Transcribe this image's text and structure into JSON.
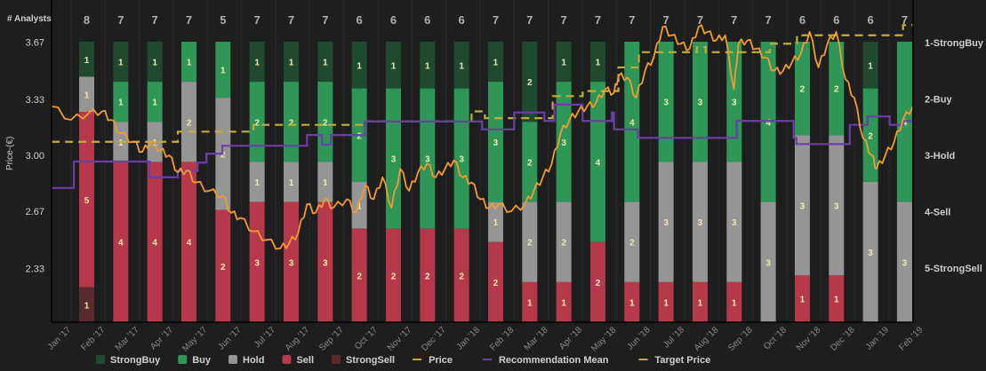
{
  "chart_data": {
    "type": "bar",
    "stacked": true,
    "left_axis_title": "Price-(€)",
    "count_header": "# Analysts",
    "y_left_ticks": [
      {
        "label": "3.67",
        "value": 3.67
      },
      {
        "label": "3.33",
        "value": 3.33
      },
      {
        "label": "3.00",
        "value": 3.0
      },
      {
        "label": "2.67",
        "value": 2.67
      },
      {
        "label": "2.33",
        "value": 2.33
      }
    ],
    "y_left_range": [
      2.0,
      3.92
    ],
    "y_right_ticks": [
      "1-StrongBuy",
      "2-Buy",
      "3-Hold",
      "4-Sell",
      "5-StrongSell"
    ],
    "x_tick_labels": [
      "Jan '17",
      "Feb '17",
      "Mar '17",
      "Apr '17",
      "May '17",
      "Jun '17",
      "Jul '17",
      "Aug '17",
      "Sep '17",
      "Oct '17",
      "Nov '17",
      "Dec '17",
      "Jan '18",
      "Feb '18",
      "Mar '18",
      "Apr '18",
      "May '18",
      "Jun '18",
      "Jul '18",
      "Aug '18",
      "Sep '18",
      "Oct '18",
      "Nov '18",
      "Dec '18",
      "Jan '19",
      "Feb '19"
    ],
    "categories_keys": [
      "StrongBuy",
      "Buy",
      "Hold",
      "Sell",
      "StrongSell"
    ],
    "colors": {
      "StrongBuy": "#1f4a30",
      "Buy": "#2e9656",
      "Hold": "#959595",
      "Sell": "#b5394a",
      "StrongSell": "#5a2a31",
      "Price": "#f39c32",
      "Recommendation Mean": "#6a3fa6",
      "Target Price": "#c2ad3c",
      "segment_text": "#f1e8b0"
    },
    "bars": [
      {
        "total": 8,
        "counts": [
          1,
          0,
          1,
          5,
          1
        ]
      },
      {
        "total": 7,
        "counts": [
          1,
          1,
          1,
          4,
          0
        ]
      },
      {
        "total": 7,
        "counts": [
          1,
          1,
          1,
          4,
          0
        ]
      },
      {
        "total": 7,
        "counts": [
          0,
          1,
          2,
          4,
          0
        ]
      },
      {
        "total": 5,
        "counts": [
          0,
          1,
          2,
          2,
          0
        ]
      },
      {
        "total": 7,
        "counts": [
          1,
          2,
          1,
          3,
          0
        ]
      },
      {
        "total": 7,
        "counts": [
          1,
          2,
          1,
          3,
          0
        ]
      },
      {
        "total": 7,
        "counts": [
          1,
          2,
          1,
          3,
          0
        ]
      },
      {
        "total": 6,
        "counts": [
          1,
          2,
          1,
          2,
          0
        ]
      },
      {
        "total": 6,
        "counts": [
          1,
          3,
          0,
          2,
          0
        ]
      },
      {
        "total": 6,
        "counts": [
          1,
          3,
          0,
          2,
          0
        ]
      },
      {
        "total": 6,
        "counts": [
          1,
          3,
          0,
          2,
          0
        ]
      },
      {
        "total": 7,
        "counts": [
          1,
          3,
          1,
          2,
          0
        ]
      },
      {
        "total": 7,
        "counts": [
          2,
          2,
          2,
          1,
          0
        ]
      },
      {
        "total": 7,
        "counts": [
          1,
          3,
          2,
          1,
          0
        ]
      },
      {
        "total": 7,
        "counts": [
          1,
          4,
          0,
          2,
          0
        ]
      },
      {
        "total": 7,
        "counts": [
          0,
          4,
          2,
          1,
          0
        ]
      },
      {
        "total": 7,
        "counts": [
          0,
          3,
          3,
          1,
          0
        ]
      },
      {
        "total": 7,
        "counts": [
          0,
          3,
          3,
          1,
          0
        ]
      },
      {
        "total": 7,
        "counts": [
          0,
          3,
          3,
          1,
          0
        ]
      },
      {
        "total": 7,
        "counts": [
          0,
          4,
          3,
          0,
          0
        ]
      },
      {
        "total": 6,
        "counts": [
          0,
          2,
          3,
          1,
          0
        ]
      },
      {
        "total": 6,
        "counts": [
          0,
          2,
          3,
          1,
          0
        ]
      },
      {
        "total": 6,
        "counts": [
          1,
          2,
          3,
          0,
          0
        ]
      },
      {
        "total": 7,
        "counts": [
          0,
          4,
          3,
          0,
          0
        ]
      }
    ],
    "price_series": [
      [
        -0.57,
        3.29
      ],
      [
        0,
        3.21
      ],
      [
        0.52,
        3.25
      ],
      [
        0.91,
        3.26
      ],
      [
        1.17,
        3.21
      ],
      [
        1.44,
        3.13
      ],
      [
        1.83,
        3.08
      ],
      [
        2.09,
        3.02
      ],
      [
        2.35,
        3.08
      ],
      [
        2.61,
        3.03
      ],
      [
        2.87,
        3.0
      ],
      [
        3.13,
        2.9
      ],
      [
        3.39,
        2.91
      ],
      [
        3.66,
        2.84
      ],
      [
        4.05,
        2.79
      ],
      [
        4.44,
        2.76
      ],
      [
        4.7,
        2.66
      ],
      [
        4.96,
        2.63
      ],
      [
        5.35,
        2.55
      ],
      [
        5.74,
        2.5
      ],
      [
        6.14,
        2.45
      ],
      [
        6.4,
        2.48
      ],
      [
        6.66,
        2.54
      ],
      [
        6.92,
        2.71
      ],
      [
        7.18,
        2.66
      ],
      [
        7.44,
        2.74
      ],
      [
        7.7,
        2.69
      ],
      [
        8.09,
        2.74
      ],
      [
        8.36,
        2.66
      ],
      [
        8.62,
        2.82
      ],
      [
        8.88,
        2.74
      ],
      [
        9.14,
        2.87
      ],
      [
        9.4,
        2.69
      ],
      [
        9.66,
        2.92
      ],
      [
        9.92,
        2.79
      ],
      [
        10.18,
        2.9
      ],
      [
        10.44,
        2.95
      ],
      [
        10.7,
        2.87
      ],
      [
        10.97,
        2.92
      ],
      [
        11.23,
        2.97
      ],
      [
        11.49,
        2.87
      ],
      [
        11.75,
        2.84
      ],
      [
        12.01,
        2.74
      ],
      [
        12.27,
        2.69
      ],
      [
        12.53,
        2.71
      ],
      [
        12.92,
        2.67
      ],
      [
        13.32,
        2.71
      ],
      [
        13.58,
        2.79
      ],
      [
        13.84,
        2.87
      ],
      [
        14.1,
        2.95
      ],
      [
        14.36,
        3.13
      ],
      [
        14.62,
        3.21
      ],
      [
        14.88,
        3.26
      ],
      [
        15.14,
        3.29
      ],
      [
        15.4,
        3.31
      ],
      [
        15.67,
        3.39
      ],
      [
        15.93,
        3.37
      ],
      [
        16.06,
        3.47
      ],
      [
        16.32,
        3.46
      ],
      [
        16.58,
        3.34
      ],
      [
        16.84,
        3.5
      ],
      [
        17.1,
        3.58
      ],
      [
        17.36,
        3.76
      ],
      [
        17.62,
        3.71
      ],
      [
        17.89,
        3.66
      ],
      [
        18.15,
        3.63
      ],
      [
        18.41,
        3.76
      ],
      [
        18.67,
        3.73
      ],
      [
        18.93,
        3.68
      ],
      [
        19.19,
        3.71
      ],
      [
        19.45,
        3.39
      ],
      [
        19.58,
        3.66
      ],
      [
        19.84,
        3.68
      ],
      [
        20.1,
        3.63
      ],
      [
        20.37,
        3.58
      ],
      [
        20.63,
        3.5
      ],
      [
        20.89,
        3.5
      ],
      [
        21.15,
        3.55
      ],
      [
        21.41,
        3.6
      ],
      [
        21.67,
        3.73
      ],
      [
        21.93,
        3.52
      ],
      [
        22.19,
        3.66
      ],
      [
        22.45,
        3.73
      ],
      [
        22.72,
        3.45
      ],
      [
        22.98,
        3.34
      ],
      [
        23.24,
        3.1
      ],
      [
        23.5,
        3.0
      ],
      [
        23.63,
        2.92
      ],
      [
        23.89,
        3.0
      ],
      [
        24.15,
        3.08
      ],
      [
        24.41,
        3.21
      ],
      [
        24.7,
        3.29
      ]
    ],
    "target_price_steps": [
      [
        -0.57,
        3.08
      ],
      [
        3.13,
        3.14
      ],
      [
        5.35,
        3.18
      ],
      [
        8.62,
        3.2
      ],
      [
        11.75,
        3.26
      ],
      [
        12.14,
        3.22
      ],
      [
        14.13,
        3.35
      ],
      [
        15.01,
        3.38
      ],
      [
        16.06,
        3.52
      ],
      [
        16.66,
        3.61
      ],
      [
        18.36,
        3.64
      ],
      [
        18.62,
        3.61
      ],
      [
        20.5,
        3.66
      ],
      [
        21.3,
        3.71
      ],
      [
        24.41,
        3.77
      ]
    ],
    "recommendation_mean_steps": [
      [
        -0.57,
        3.58
      ],
      [
        0.08,
        3.11
      ],
      [
        2.3,
        3.39
      ],
      [
        3.13,
        3.28
      ],
      [
        3.71,
        3.13
      ],
      [
        3.97,
        2.97
      ],
      [
        4.44,
        2.83
      ],
      [
        6.92,
        2.64
      ],
      [
        7.36,
        2.81
      ],
      [
        7.62,
        2.64
      ],
      [
        8.62,
        2.4
      ],
      [
        12.06,
        2.54
      ],
      [
        13.0,
        2.24
      ],
      [
        13.89,
        2.39
      ],
      [
        14.18,
        2.1
      ],
      [
        15.01,
        2.39
      ],
      [
        15.87,
        2.24
      ],
      [
        15.93,
        2.54
      ],
      [
        16.63,
        2.69
      ],
      [
        19.53,
        2.39
      ],
      [
        21.2,
        2.69
      ],
      [
        21.28,
        2.8
      ],
      [
        22.85,
        2.46
      ],
      [
        23.37,
        2.31
      ],
      [
        24.02,
        2.46
      ],
      [
        24.41,
        2.39
      ]
    ],
    "t_end": 24.7,
    "legend": [
      {
        "label": "StrongBuy",
        "kind": "box",
        "key": "StrongBuy"
      },
      {
        "label": "Buy",
        "kind": "box",
        "key": "Buy"
      },
      {
        "label": "Hold",
        "kind": "box",
        "key": "Hold"
      },
      {
        "label": "Sell",
        "kind": "box",
        "key": "Sell"
      },
      {
        "label": "StrongSell",
        "kind": "box",
        "key": "StrongSell"
      },
      {
        "label": "Price",
        "kind": "line",
        "key": "Price"
      },
      {
        "label": "Recommendation Mean",
        "kind": "line",
        "key": "Recommendation Mean"
      },
      {
        "label": "Target Price",
        "kind": "line",
        "key": "Target Price"
      }
    ],
    "legend_placement": "bottom"
  }
}
